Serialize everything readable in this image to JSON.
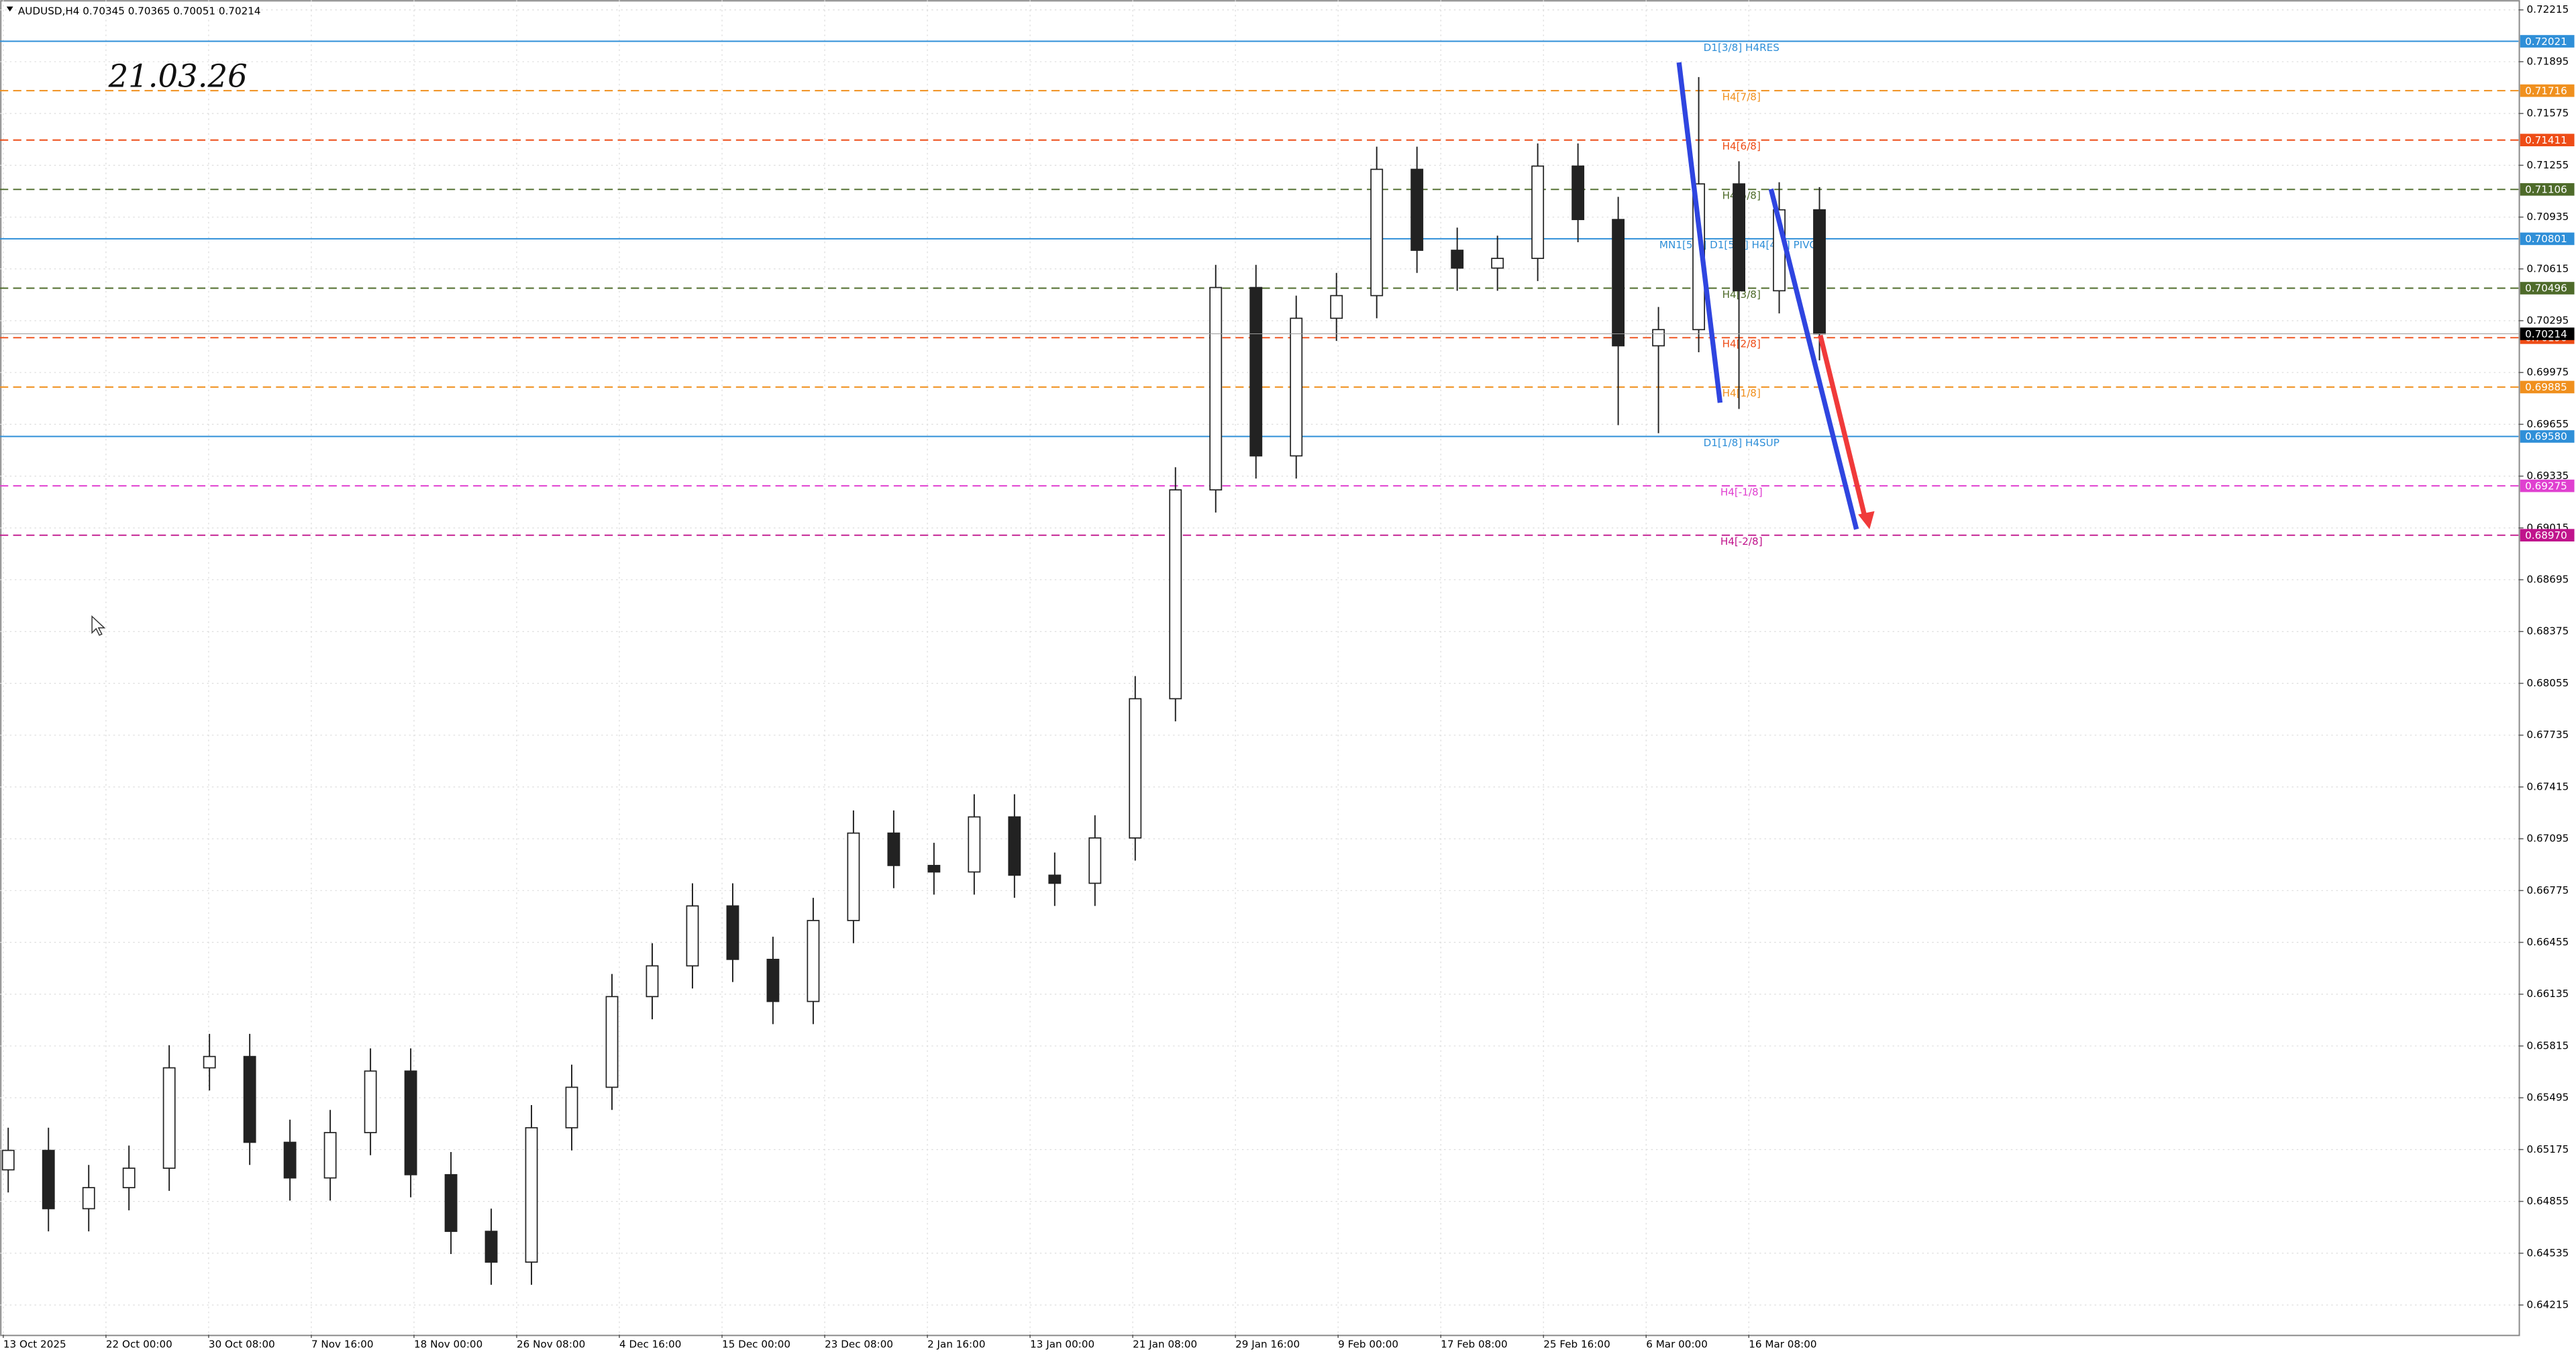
{
  "chart_data": {
    "type": "candlestick",
    "header": "AUDUSD,H4  0.70345 0.70365 0.70051 0.70214",
    "annotation": "21.03.26",
    "categories": [
      "13 Oct 2025",
      "22 Oct 00:00",
      "30 Oct 08:00",
      "7 Nov 16:00",
      "18 Nov 00:00",
      "26 Nov 08:00",
      "4 Dec 16:00",
      "15 Dec 00:00",
      "23 Dec 08:00",
      "2 Jan 16:00",
      "13 Jan 00:00",
      "21 Jan 08:00",
      "29 Jan 16:00",
      "9 Feb 00:00",
      "17 Feb 08:00",
      "25 Feb 16:00",
      "6 Mar 00:00",
      "16 Mar 08:00"
    ],
    "open": [
      0.6505,
      0.6517,
      0.6481,
      0.6494,
      0.6506,
      0.6568,
      0.6575,
      0.6522,
      0.65,
      0.6528,
      0.6566,
      0.6502,
      0.6467,
      0.6448,
      0.6531,
      0.6556,
      0.6612,
      0.6631,
      0.6668,
      0.6635,
      0.6609,
      0.6659,
      0.6713,
      0.6693,
      0.6689,
      0.6723,
      0.6687,
      0.6682,
      0.671,
      0.6796,
      0.6925,
      0.705,
      0.6946,
      0.7031,
      0.7045,
      0.7123,
      0.7073,
      0.7062,
      0.7068,
      0.7125,
      0.7092,
      0.7014,
      0.7024,
      0.7114,
      0.7048,
      0.7098
    ],
    "high": [
      0.6531,
      0.6531,
      0.6508,
      0.652,
      0.6582,
      0.6589,
      0.6589,
      0.6536,
      0.6542,
      0.658,
      0.658,
      0.6516,
      0.6481,
      0.6545,
      0.657,
      0.6626,
      0.6645,
      0.6682,
      0.6682,
      0.6649,
      0.6673,
      0.6727,
      0.6727,
      0.6707,
      0.6737,
      0.6737,
      0.6701,
      0.6724,
      0.681,
      0.6939,
      0.7064,
      0.7064,
      0.7045,
      0.7059,
      0.7137,
      0.7137,
      0.7087,
      0.7082,
      0.7139,
      0.7139,
      0.7106,
      0.7038,
      0.718,
      0.7128,
      0.7115,
      0.7112
    ],
    "low": [
      0.6491,
      0.6467,
      0.6467,
      0.648,
      0.6492,
      0.6554,
      0.6508,
      0.6486,
      0.6486,
      0.6514,
      0.6488,
      0.6453,
      0.6434,
      0.6434,
      0.6517,
      0.6542,
      0.6598,
      0.6617,
      0.6621,
      0.6595,
      0.6595,
      0.6645,
      0.6679,
      0.6675,
      0.6675,
      0.6673,
      0.6668,
      0.6668,
      0.6696,
      0.6782,
      0.6911,
      0.6932,
      0.6932,
      0.7017,
      0.7031,
      0.7059,
      0.7048,
      0.7048,
      0.7054,
      0.7078,
      0.6965,
      0.696,
      0.701,
      0.6975,
      0.7034,
      0.7005
    ],
    "close": [
      0.6517,
      0.6481,
      0.6494,
      0.6506,
      0.6568,
      0.6575,
      0.6522,
      0.65,
      0.6528,
      0.6566,
      0.6502,
      0.6467,
      0.6448,
      0.6531,
      0.6556,
      0.6612,
      0.6631,
      0.6668,
      0.6635,
      0.6609,
      0.6659,
      0.6713,
      0.6693,
      0.6689,
      0.6723,
      0.6687,
      0.6682,
      0.671,
      0.6796,
      0.6925,
      0.705,
      0.6946,
      0.7031,
      0.7045,
      0.7123,
      0.7073,
      0.7062,
      0.7068,
      0.7125,
      0.7092,
      0.7014,
      0.7024,
      0.7114,
      0.7048,
      0.7098,
      0.70214
    ],
    "last_price": 0.70214,
    "ylim": [
      0.64032,
      0.72276
    ],
    "yticks": [
      0.72215,
      0.71895,
      0.71575,
      0.71255,
      0.70935,
      0.70615,
      0.70295,
      0.69975,
      0.69655,
      0.69335,
      0.69015,
      0.68695,
      0.68375,
      0.68055,
      0.67735,
      0.67415,
      0.67095,
      0.66775,
      0.66455,
      0.66135,
      0.65815,
      0.65495,
      0.65175,
      0.64855,
      0.64535,
      0.64215
    ],
    "grid": true,
    "levels": [
      {
        "name": "D1[3/8] H4RES",
        "price": 0.72021,
        "price_label": "0.72021",
        "color": "#2f8fd8",
        "dashed": false
      },
      {
        "name": "H4[7/8]",
        "price": 0.71716,
        "price_label": "0.71716",
        "color": "#f0901e",
        "dashed": true
      },
      {
        "name": "H4[6/8]",
        "price": 0.71411,
        "price_label": "0.71411",
        "color": "#ee4c16",
        "dashed": true
      },
      {
        "name": "H4[5/8]",
        "price": 0.71106,
        "price_label": "0.71106",
        "color": "#4e6b2a",
        "dashed": true
      },
      {
        "name": "MN1[5/8] D1[5/8] H4[4/8] PIVOT",
        "price": 0.70801,
        "price_label": "0.70801",
        "color": "#2f8fd8",
        "dashed": false
      },
      {
        "name": "H4[3/8]",
        "price": 0.70496,
        "price_label": "0.70496",
        "color": "#4e6b2a",
        "dashed": true
      },
      {
        "name": "H4[2/8]",
        "price": 0.7019,
        "price_label": "0.70190",
        "color": "#ee4c16",
        "dashed": true
      },
      {
        "name": "H4[1/8]",
        "price": 0.69885,
        "price_label": "0.69885",
        "color": "#f0901e",
        "dashed": true
      },
      {
        "name": "D1[1/8] H4SUP",
        "price": 0.6958,
        "price_label": "0.69580",
        "color": "#2f8fd8",
        "dashed": false
      },
      {
        "name": "H4[-1/8]",
        "price": 0.69275,
        "price_label": "0.69275",
        "color": "#e040d0",
        "dashed": true
      },
      {
        "name": "H4[-2/8]",
        "price": 0.6897,
        "price_label": "0.68970",
        "color": "#c0148c",
        "dashed": true
      }
    ]
  }
}
